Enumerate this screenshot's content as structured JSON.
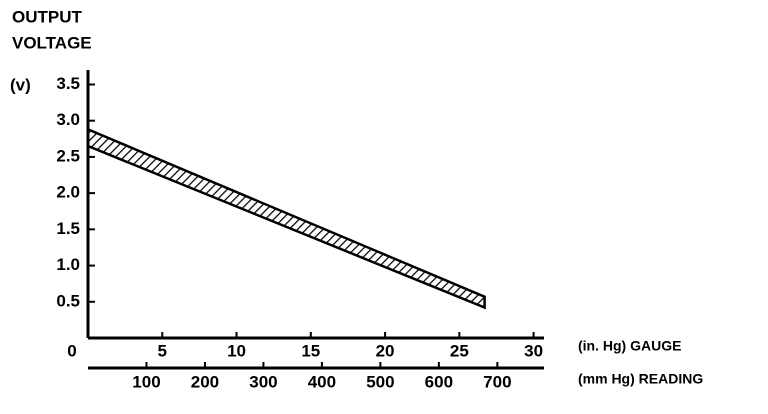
{
  "chart_data": {
    "type": "band",
    "title_lines": [
      "OUTPUT",
      "VOLTAGE"
    ],
    "y_unit": "(v)",
    "x_label": "(in. Hg) GAUGE",
    "x2_label": "(mm Hg) READING",
    "band": {
      "x": [
        0,
        26.7
      ],
      "upper": [
        2.88,
        0.57
      ],
      "lower": [
        2.65,
        0.42
      ]
    },
    "color": "#000000",
    "ylim": [
      0,
      3.7
    ],
    "yticks": [
      0.5,
      {
        "value": 1,
        "label": "1.0"
      },
      1.5,
      {
        "value": 2,
        "label": "2.0"
      },
      2.5,
      {
        "value": 3,
        "label": "3.0"
      },
      3.5
    ],
    "xlim": [
      0,
      30.7
    ],
    "xticks": [
      0,
      5,
      10,
      15,
      20,
      25,
      30
    ],
    "x2lim": [
      0,
      779.78
    ],
    "x2ticks": [
      100,
      200,
      300,
      400,
      500,
      600,
      700
    ]
  }
}
